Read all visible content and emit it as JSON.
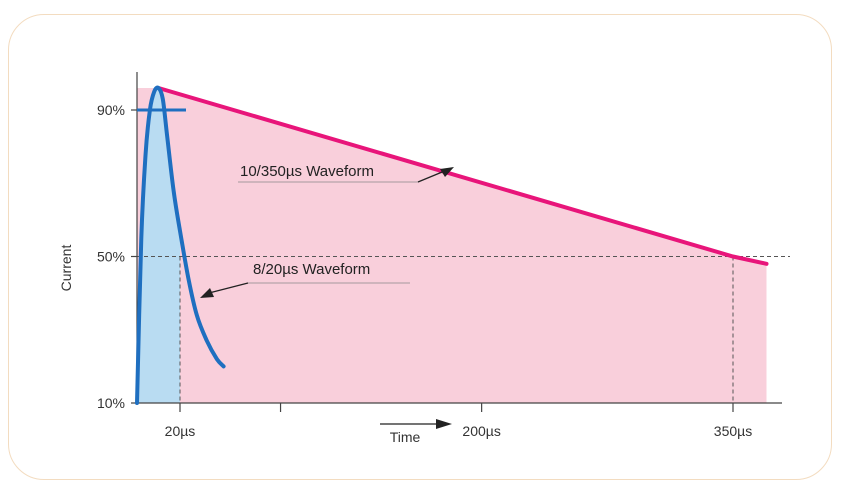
{
  "chart_data": {
    "type": "area",
    "title": "",
    "xlabel": "Time",
    "ylabel": "Current",
    "y_ticks": [
      {
        "label": "90%",
        "value": 90
      },
      {
        "label": "50%",
        "value": 50
      },
      {
        "label": "10%",
        "value": 10
      }
    ],
    "x_ticks": [
      {
        "label": "20µs",
        "value": 20
      },
      {
        "label": "",
        "value": 80
      },
      {
        "label": "200µs",
        "value": 200
      },
      {
        "label": "350µs",
        "value": 350
      }
    ],
    "series": [
      {
        "name": "8/20µs Waveform",
        "color": "#1f6fc0",
        "fill": "#b9dcf2",
        "x": [
          0,
          2,
          4,
          6,
          8,
          10,
          12,
          14,
          17,
          20,
          25,
          30,
          36,
          42,
          46
        ],
        "y": [
          10,
          55,
          78,
          90,
          95,
          96,
          93,
          83,
          68,
          57,
          44,
          34,
          27,
          22,
          20
        ]
      },
      {
        "name": "10/350µs Waveform",
        "color": "#e8157a",
        "fill": "#f9cfdb",
        "x": [
          10,
          350,
          370
        ],
        "y": [
          96,
          50,
          48
        ]
      }
    ],
    "annotations": [
      {
        "text": "10/350µs Waveform",
        "series": 1
      },
      {
        "text": "8/20µs Waveform",
        "series": 0
      }
    ],
    "reference_line": {
      "y": 50,
      "style": "dashed"
    },
    "drop_lines_x": [
      20,
      350
    ],
    "grid": false
  }
}
